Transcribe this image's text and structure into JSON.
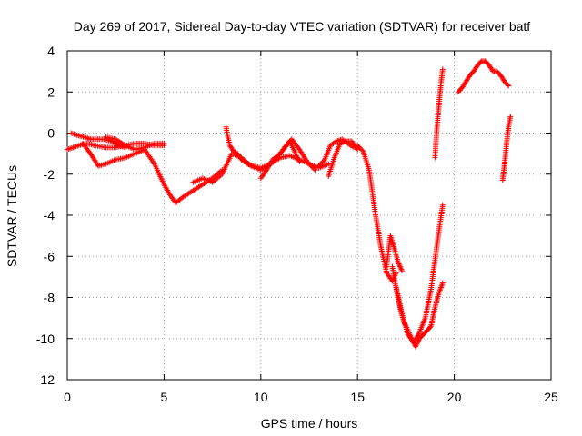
{
  "chart_data": {
    "type": "scatter",
    "title": "Day 269 of 2017, Sidereal Day-to-day VTEC variation (SDTVAR) for receiver batf",
    "xlabel": "GPS time / hours",
    "ylabel": "SDTVAR / TECUs",
    "xlim": [
      0,
      25
    ],
    "ylim": [
      -12,
      4
    ],
    "xticks": [
      0,
      5,
      10,
      15,
      20,
      25
    ],
    "yticks": [
      -12,
      -10,
      -8,
      -6,
      -4,
      -2,
      0,
      2,
      4
    ],
    "xtick_labels": [
      "0",
      "5",
      "10",
      "15",
      "20",
      "25"
    ],
    "ytick_labels": [
      "-12",
      "-10",
      "-8",
      "-6",
      "-4",
      "-2",
      "0",
      "2",
      "4"
    ],
    "grid": true,
    "legend": "none",
    "marker": "plus",
    "color": "#ff0000",
    "segments": [
      {
        "x": [
          0.0,
          0.3,
          0.6,
          1.0,
          1.4,
          2.0,
          2.5,
          3.0,
          3.5,
          4.0,
          4.5,
          5.0
        ],
        "y": [
          -0.8,
          -0.7,
          -0.6,
          -0.5,
          -0.6,
          -0.7,
          -0.7,
          -0.6,
          -0.5,
          -0.5,
          -0.6,
          -0.6
        ]
      },
      {
        "x": [
          0.2,
          0.5,
          0.9,
          1.2,
          1.5,
          1.9,
          2.3,
          2.7,
          3.0
        ],
        "y": [
          0.0,
          -0.1,
          -0.2,
          -0.3,
          -0.3,
          -0.3,
          -0.4,
          -0.6,
          -0.7
        ]
      },
      {
        "x": [
          0.8,
          1.2,
          1.6,
          2.0,
          2.5,
          3.0,
          3.5,
          4.0,
          4.5,
          5.0,
          5.3,
          5.6,
          6.0,
          6.5,
          7.0,
          7.5,
          8.0
        ],
        "y": [
          -0.5,
          -1.0,
          -1.6,
          -1.5,
          -1.3,
          -1.2,
          -1.0,
          -0.8,
          -1.5,
          -2.5,
          -3.0,
          -3.4,
          -3.1,
          -2.8,
          -2.5,
          -2.2,
          -1.8
        ]
      },
      {
        "x": [
          2.0,
          2.5,
          3.0,
          3.5,
          4.0,
          4.5,
          5.0
        ],
        "y": [
          -0.2,
          -0.3,
          -0.6,
          -0.8,
          -0.7,
          -0.5,
          -0.5
        ]
      },
      {
        "x": [
          6.5,
          7.0,
          7.5,
          8.0,
          8.5,
          9.0,
          9.5,
          10.0,
          10.5,
          11.0,
          11.5,
          12.0,
          12.5,
          13.0,
          13.5
        ],
        "y": [
          -2.4,
          -2.2,
          -2.4,
          -2.0,
          -1.0,
          -1.2,
          -1.6,
          -1.8,
          -1.5,
          -1.2,
          -1.1,
          -1.3,
          -1.5,
          -1.7,
          -1.5
        ]
      },
      {
        "x": [
          8.2,
          8.3,
          8.4,
          8.6,
          8.8,
          9.0,
          9.3,
          9.6,
          10.0,
          10.5,
          11.0,
          11.5,
          12.0
        ],
        "y": [
          0.3,
          -0.2,
          -0.6,
          -0.9,
          -1.0,
          -1.3,
          -1.5,
          -1.6,
          -1.7,
          -1.5,
          -1.0,
          -0.4,
          -1.4
        ]
      },
      {
        "x": [
          10.0,
          10.3,
          10.6,
          11.0,
          11.3,
          11.6,
          12.0,
          12.4,
          12.8
        ],
        "y": [
          -2.2,
          -1.8,
          -1.3,
          -1.0,
          -0.6,
          -0.3,
          -0.8,
          -1.4,
          -1.8
        ]
      },
      {
        "x": [
          13.0,
          13.3,
          13.6,
          13.9,
          14.2,
          14.5,
          14.8,
          15.0,
          15.3,
          15.6,
          15.9,
          16.2,
          16.5,
          16.8,
          17.0
        ],
        "y": [
          -1.6,
          -1.3,
          -0.6,
          -0.4,
          -0.3,
          -0.5,
          -0.7,
          -0.6,
          -0.9,
          -1.8,
          -3.8,
          -5.5,
          -6.8,
          -7.2,
          -6.8
        ]
      },
      {
        "x": [
          13.5,
          13.8,
          14.1,
          14.4,
          14.7,
          15.0
        ],
        "y": [
          -2.1,
          -1.2,
          -0.5,
          -0.4,
          -0.4,
          -0.8
        ]
      },
      {
        "x": [
          16.5,
          16.7,
          16.9,
          17.1,
          17.3
        ],
        "y": [
          -6.5,
          -5.0,
          -5.6,
          -6.3,
          -6.7
        ]
      },
      {
        "x": [
          16.8,
          17.0,
          17.2,
          17.4,
          17.6,
          17.8,
          18.0,
          18.2,
          18.4,
          18.6,
          18.8,
          19.0,
          19.2,
          19.4
        ],
        "y": [
          -6.5,
          -7.6,
          -8.5,
          -9.2,
          -9.6,
          -10.0,
          -10.4,
          -10.0,
          -9.8,
          -9.6,
          -9.4,
          -8.5,
          -7.8,
          -7.3
        ]
      },
      {
        "x": [
          17.0,
          17.3,
          17.6,
          17.9,
          18.2,
          18.5,
          18.8,
          19.0,
          19.2,
          19.4
        ],
        "y": [
          -7.5,
          -8.8,
          -9.8,
          -10.2,
          -9.7,
          -9.0,
          -7.6,
          -6.2,
          -4.8,
          -3.5
        ]
      },
      {
        "x": [
          19.0,
          19.1,
          19.2,
          19.3,
          19.4
        ],
        "y": [
          -1.2,
          0.2,
          1.3,
          2.3,
          3.1
        ]
      },
      {
        "x": [
          20.2,
          20.4,
          20.6,
          20.8,
          21.0,
          21.2,
          21.4,
          21.6,
          21.8,
          22.0,
          22.2,
          22.4,
          22.6,
          22.8
        ],
        "y": [
          2.0,
          2.2,
          2.5,
          2.8,
          3.0,
          3.3,
          3.5,
          3.5,
          3.3,
          3.0,
          3.0,
          2.8,
          2.5,
          2.3
        ]
      },
      {
        "x": [
          22.5,
          22.6,
          22.7,
          22.8,
          22.9
        ],
        "y": [
          -2.3,
          -1.5,
          -0.5,
          0.3,
          0.8
        ]
      }
    ]
  }
}
